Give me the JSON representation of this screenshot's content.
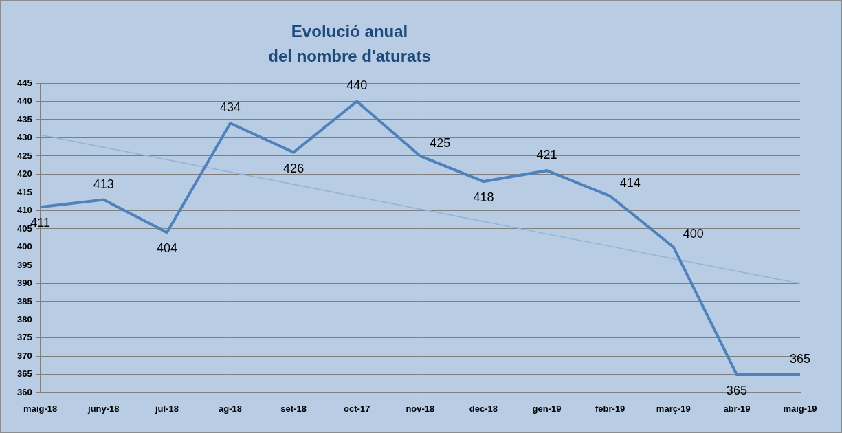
{
  "chart_data": {
    "type": "line",
    "title": [
      "Evolució anual",
      "del nombre d'aturats"
    ],
    "categories": [
      "maig-18",
      "juny-18",
      "jul-18",
      "ag-18",
      "set-18",
      "oct-17",
      "nov-18",
      "dec-18",
      "gen-19",
      "febr-19",
      "març-19",
      "abr-19",
      "maig-19"
    ],
    "series": [
      {
        "color": "#4f81bd",
        "values": [
          411,
          413,
          404,
          434,
          426,
          440,
          425,
          418,
          421,
          414,
          400,
          365,
          365
        ],
        "data_labels": true,
        "line_style": "solid",
        "marker": "none"
      },
      {
        "color": "#95b3d7",
        "values": [
          430.8,
          427.4,
          424.0,
          420.6,
          417.2,
          413.8,
          410.4,
          407.0,
          403.6,
          400.2,
          396.8,
          393.4,
          390.0
        ],
        "line_style": "solid",
        "marker": "none"
      }
    ],
    "ylim": [
      360,
      445
    ],
    "yticks": [
      360,
      365,
      370,
      375,
      380,
      385,
      390,
      395,
      400,
      405,
      410,
      415,
      420,
      425,
      430,
      435,
      440,
      445
    ],
    "grid": true
  }
}
